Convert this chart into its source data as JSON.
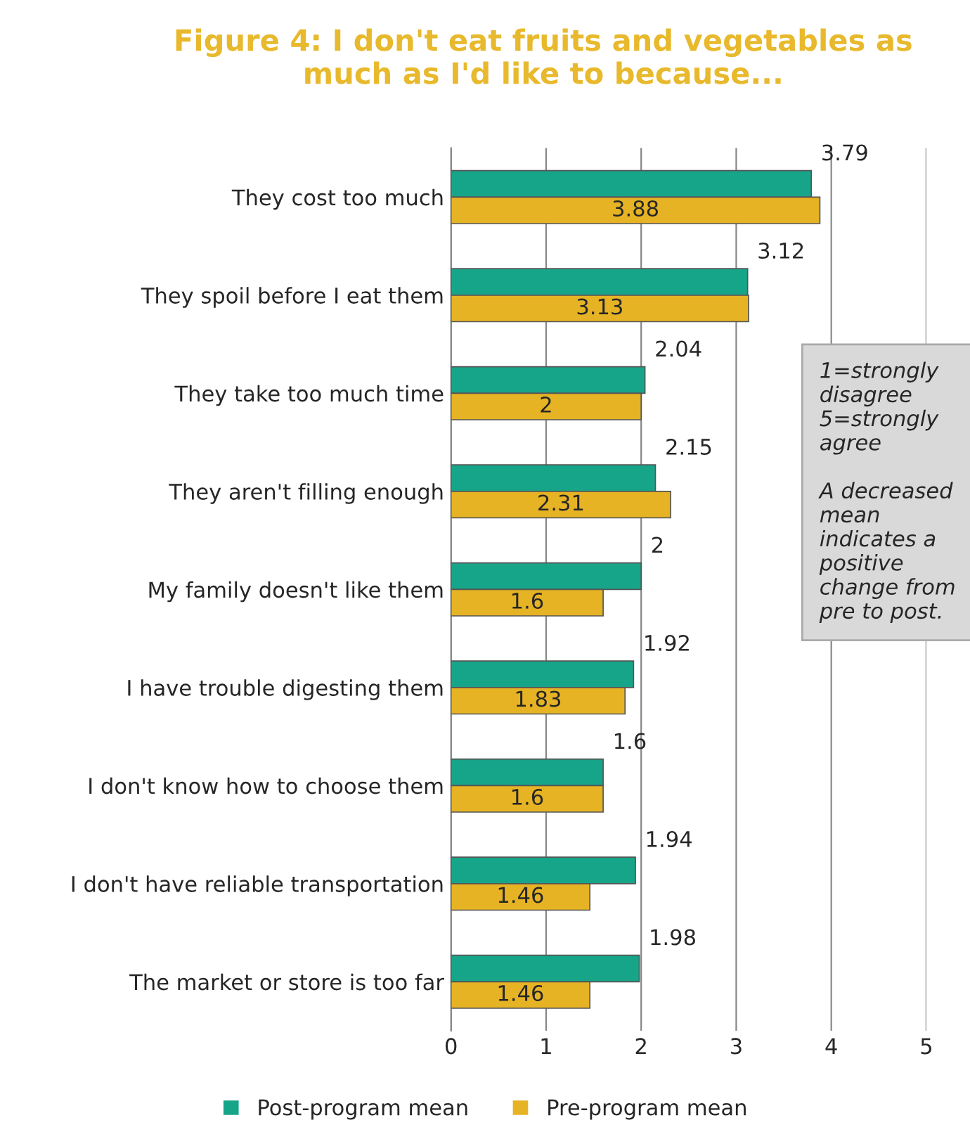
{
  "chart_data": {
    "type": "bar",
    "orientation": "horizontal",
    "title": "Figure 4: I don't eat fruits and vegetables as\nmuch as I'd like to because...",
    "categories": [
      "They cost too much",
      "They spoil before I eat them",
      "They take too much time",
      "They aren't filling enough",
      "My family doesn't like them",
      "I have trouble digesting them",
      "I don't know how to choose them",
      "I don't have reliable transportation",
      "The market or store is too far"
    ],
    "series": [
      {
        "name": "Post-program mean",
        "color": "#17a589",
        "values": [
          3.79,
          3.12,
          2.04,
          2.15,
          2,
          1.92,
          1.6,
          1.94,
          1.98
        ]
      },
      {
        "name": "Pre-program mean",
        "color": "#e6b325",
        "values": [
          3.88,
          3.13,
          2,
          2.31,
          1.6,
          1.83,
          1.6,
          1.46,
          1.46
        ]
      }
    ],
    "xlim": [
      0,
      5
    ],
    "xticks": [
      0,
      1,
      2,
      3,
      4,
      5
    ],
    "grid": "x",
    "data_labels": true,
    "legend": "bottom",
    "annotations": [
      "1=strongly\ndisagree\n5=strongly\nagree\n\nA decreased\nmean\nindicates a\npositive\nchange from\npre to post."
    ]
  }
}
